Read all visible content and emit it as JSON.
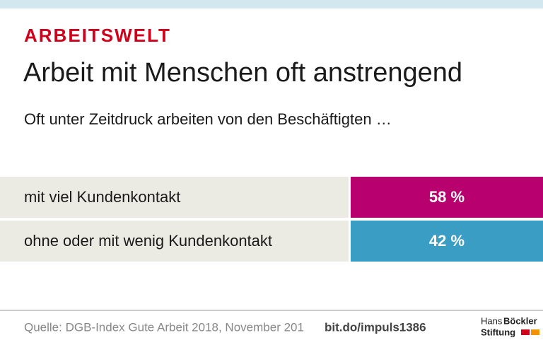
{
  "chart_data": {
    "type": "table",
    "kicker": "ARBEITSWELT",
    "title": "Arbeit mit Menschen oft anstrengend",
    "subtitle": "Oft unter Zeitdruck arbeiten von den Beschäftigten …",
    "categories": [
      "mit viel Kundenkontakt",
      "ohne oder mit wenig Kundenkontakt"
    ],
    "values": [
      58,
      42
    ],
    "value_labels": [
      "58 %",
      "42 %"
    ],
    "colors": [
      "#b8006e",
      "#3a9dc3"
    ],
    "source": "Quelle: DGB-Index Gute Arbeit 2018, November 201",
    "link": "bit.do/impuls1386",
    "logo": {
      "line1a": "Hans",
      "line1b": "Böckler",
      "line2": "Stiftung"
    }
  }
}
